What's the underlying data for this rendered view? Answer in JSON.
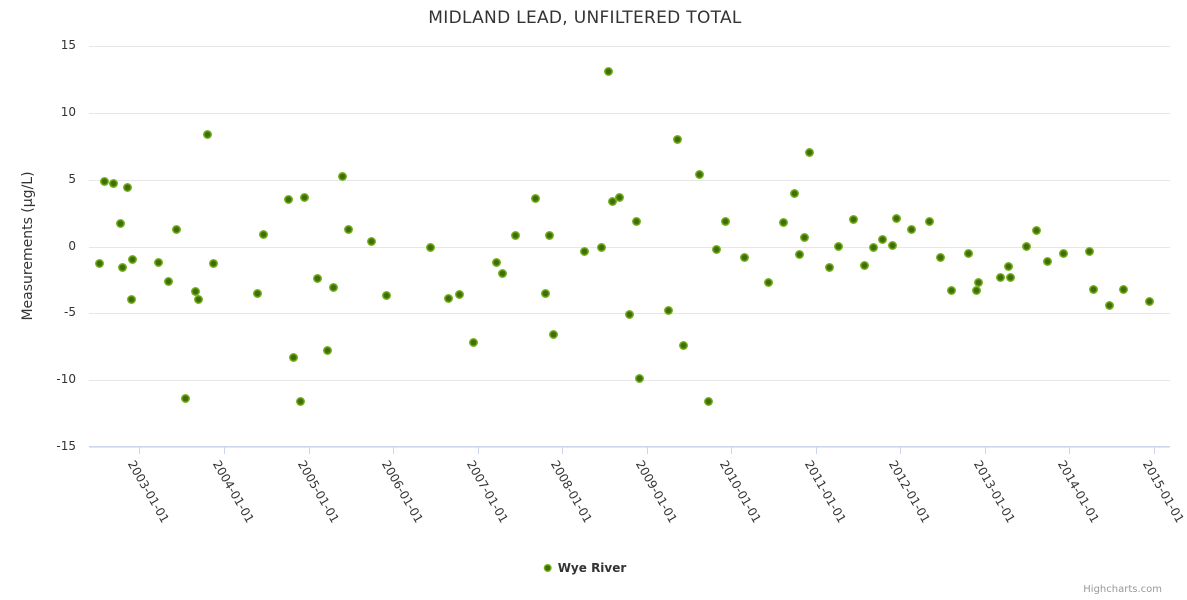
{
  "chart": {
    "title": "MIDLAND LEAD, UNFILTERED TOTAL",
    "y_axis_title": "Measurements (µg/L)",
    "legend_label": "Wye River",
    "credit": "Highcharts.com"
  },
  "colors": {
    "marker_outer": "#77b41e",
    "marker_inner": "#406d0a",
    "grid": "#e6e6e6",
    "axis_line": "#ccd6eb",
    "text": "#333333",
    "credit_text": "#999999"
  },
  "chart_data": {
    "type": "scatter",
    "title": "MIDLAND LEAD, UNFILTERED TOTAL",
    "xlabel": "",
    "ylabel": "Measurements (µg/L)",
    "legend": [
      "Wye River"
    ],
    "legend_position": "bottom-center",
    "grid": true,
    "ylim": [
      -15,
      15
    ],
    "yticks": [
      15,
      10,
      5,
      0,
      -5,
      -10,
      -15
    ],
    "xlim_years": [
      2002.403,
      2015.19
    ],
    "xtick_years": [
      2003,
      2004,
      2005,
      2006,
      2007,
      2008,
      2009,
      2010,
      2011,
      2012,
      2013,
      2014,
      2015
    ],
    "xtick_labels": [
      "2003-01-01",
      "2004-01-01",
      "2005-01-01",
      "2006-01-01",
      "2007-01-01",
      "2008-01-01",
      "2009-01-01",
      "2010-01-01",
      "2011-01-01",
      "2012-01-01",
      "2013-01-01",
      "2014-01-01",
      "2015-01-01"
    ],
    "series": [
      {
        "name": "Wye River",
        "points": [
          [
            2002.53,
            -1.3
          ],
          [
            2002.59,
            4.9
          ],
          [
            2002.69,
            4.7
          ],
          [
            2002.77,
            1.7
          ],
          [
            2002.8,
            -1.6
          ],
          [
            2002.86,
            4.4
          ],
          [
            2002.9,
            -4.0
          ],
          [
            2002.92,
            -1.0
          ],
          [
            2003.22,
            -1.2
          ],
          [
            2003.34,
            -2.6
          ],
          [
            2003.44,
            1.3
          ],
          [
            2003.54,
            -11.4
          ],
          [
            2003.66,
            -3.4
          ],
          [
            2003.7,
            -4.0
          ],
          [
            2003.81,
            8.4
          ],
          [
            2003.88,
            -1.3
          ],
          [
            2004.4,
            -3.5
          ],
          [
            2004.47,
            0.9
          ],
          [
            2004.76,
            3.5
          ],
          [
            2004.82,
            -8.3
          ],
          [
            2004.9,
            -11.6
          ],
          [
            2004.95,
            3.7
          ],
          [
            2005.1,
            -2.4
          ],
          [
            2005.23,
            -7.8
          ],
          [
            2005.3,
            -3.1
          ],
          [
            2005.4,
            5.2
          ],
          [
            2005.47,
            1.3
          ],
          [
            2005.74,
            0.4
          ],
          [
            2005.92,
            -3.7
          ],
          [
            2006.44,
            -0.1
          ],
          [
            2006.66,
            -3.9
          ],
          [
            2006.79,
            -3.6
          ],
          [
            2006.95,
            -7.2
          ],
          [
            2007.22,
            -1.2
          ],
          [
            2007.3,
            -2.0
          ],
          [
            2007.45,
            0.8
          ],
          [
            2007.69,
            3.6
          ],
          [
            2007.8,
            -3.5
          ],
          [
            2007.85,
            0.8
          ],
          [
            2007.9,
            -6.6
          ],
          [
            2008.26,
            -0.4
          ],
          [
            2008.46,
            -0.1
          ],
          [
            2008.55,
            13.1
          ],
          [
            2008.6,
            3.4
          ],
          [
            2008.68,
            3.7
          ],
          [
            2008.8,
            -5.1
          ],
          [
            2008.88,
            1.9
          ],
          [
            2008.92,
            -9.9
          ],
          [
            2009.26,
            -4.8
          ],
          [
            2009.36,
            8.0
          ],
          [
            2009.43,
            -7.4
          ],
          [
            2009.63,
            5.4
          ],
          [
            2009.73,
            -11.6
          ],
          [
            2009.83,
            -0.2
          ],
          [
            2009.93,
            1.9
          ],
          [
            2010.16,
            -0.8
          ],
          [
            2010.44,
            -2.7
          ],
          [
            2010.62,
            1.8
          ],
          [
            2010.75,
            4.0
          ],
          [
            2010.81,
            -0.6
          ],
          [
            2010.87,
            0.7
          ],
          [
            2010.93,
            7.0
          ],
          [
            2011.16,
            -1.6
          ],
          [
            2011.27,
            0.0
          ],
          [
            2011.45,
            2.0
          ],
          [
            2011.58,
            -1.4
          ],
          [
            2011.68,
            -0.1
          ],
          [
            2011.79,
            0.5
          ],
          [
            2011.91,
            0.1
          ],
          [
            2011.96,
            2.1
          ],
          [
            2012.13,
            1.3
          ],
          [
            2012.34,
            1.9
          ],
          [
            2012.48,
            -0.8
          ],
          [
            2012.6,
            -3.3
          ],
          [
            2012.81,
            -0.5
          ],
          [
            2012.9,
            -3.3
          ],
          [
            2012.93,
            -2.7
          ],
          [
            2013.18,
            -2.3
          ],
          [
            2013.28,
            -1.5
          ],
          [
            2013.3,
            -2.3
          ],
          [
            2013.49,
            0.0
          ],
          [
            2013.61,
            1.2
          ],
          [
            2013.74,
            -1.1
          ],
          [
            2013.93,
            -0.5
          ],
          [
            2014.24,
            -0.4
          ],
          [
            2014.29,
            -3.2
          ],
          [
            2014.47,
            -4.4
          ],
          [
            2014.64,
            -3.2
          ],
          [
            2014.95,
            -4.1
          ]
        ]
      }
    ]
  }
}
